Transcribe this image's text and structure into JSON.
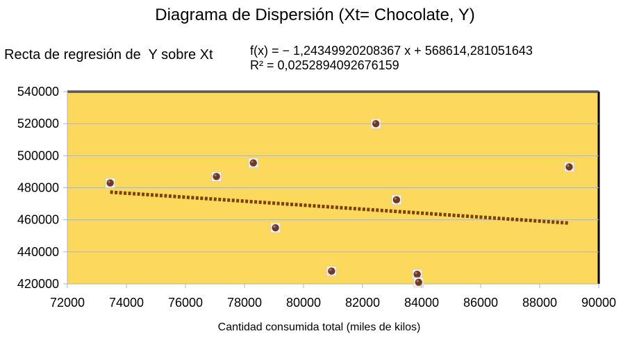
{
  "chart_data": {
    "type": "scatter",
    "title": "Diagrama de Dispersión (Xt= Chocolate, Y)",
    "xlabel": "Cantidad consumida total (miles de kilos)",
    "ylabel": "",
    "xlim": [
      72000,
      90000
    ],
    "ylim": [
      420000,
      540000
    ],
    "x_ticks": [
      "72000",
      "74000",
      "76000",
      "78000",
      "80000",
      "82000",
      "84000",
      "86000",
      "88000",
      "90000"
    ],
    "y_ticks": [
      "420000",
      "440000",
      "460000",
      "480000",
      "500000",
      "520000",
      "540000"
    ],
    "points": [
      {
        "x": 73450,
        "y": 483000
      },
      {
        "x": 77050,
        "y": 487000
      },
      {
        "x": 78300,
        "y": 495500
      },
      {
        "x": 79050,
        "y": 455000
      },
      {
        "x": 80950,
        "y": 428000
      },
      {
        "x": 82450,
        "y": 520000
      },
      {
        "x": 83150,
        "y": 472500
      },
      {
        "x": 83850,
        "y": 426000
      },
      {
        "x": 83900,
        "y": 421000
      },
      {
        "x": 89000,
        "y": 493000
      }
    ],
    "trendline": {
      "label": "Recta de regresión de  Y sobre Xt",
      "equation": "f(x) = − 1,24349920208367 x + 568614,281051643",
      "r2": "R² = 0,0252894092676159",
      "slope": -1.24349920208367,
      "intercept": 568614.281051643,
      "color": "#7b3f00"
    },
    "plot_background": "#fcd95c",
    "grid": true,
    "legend": "none"
  }
}
